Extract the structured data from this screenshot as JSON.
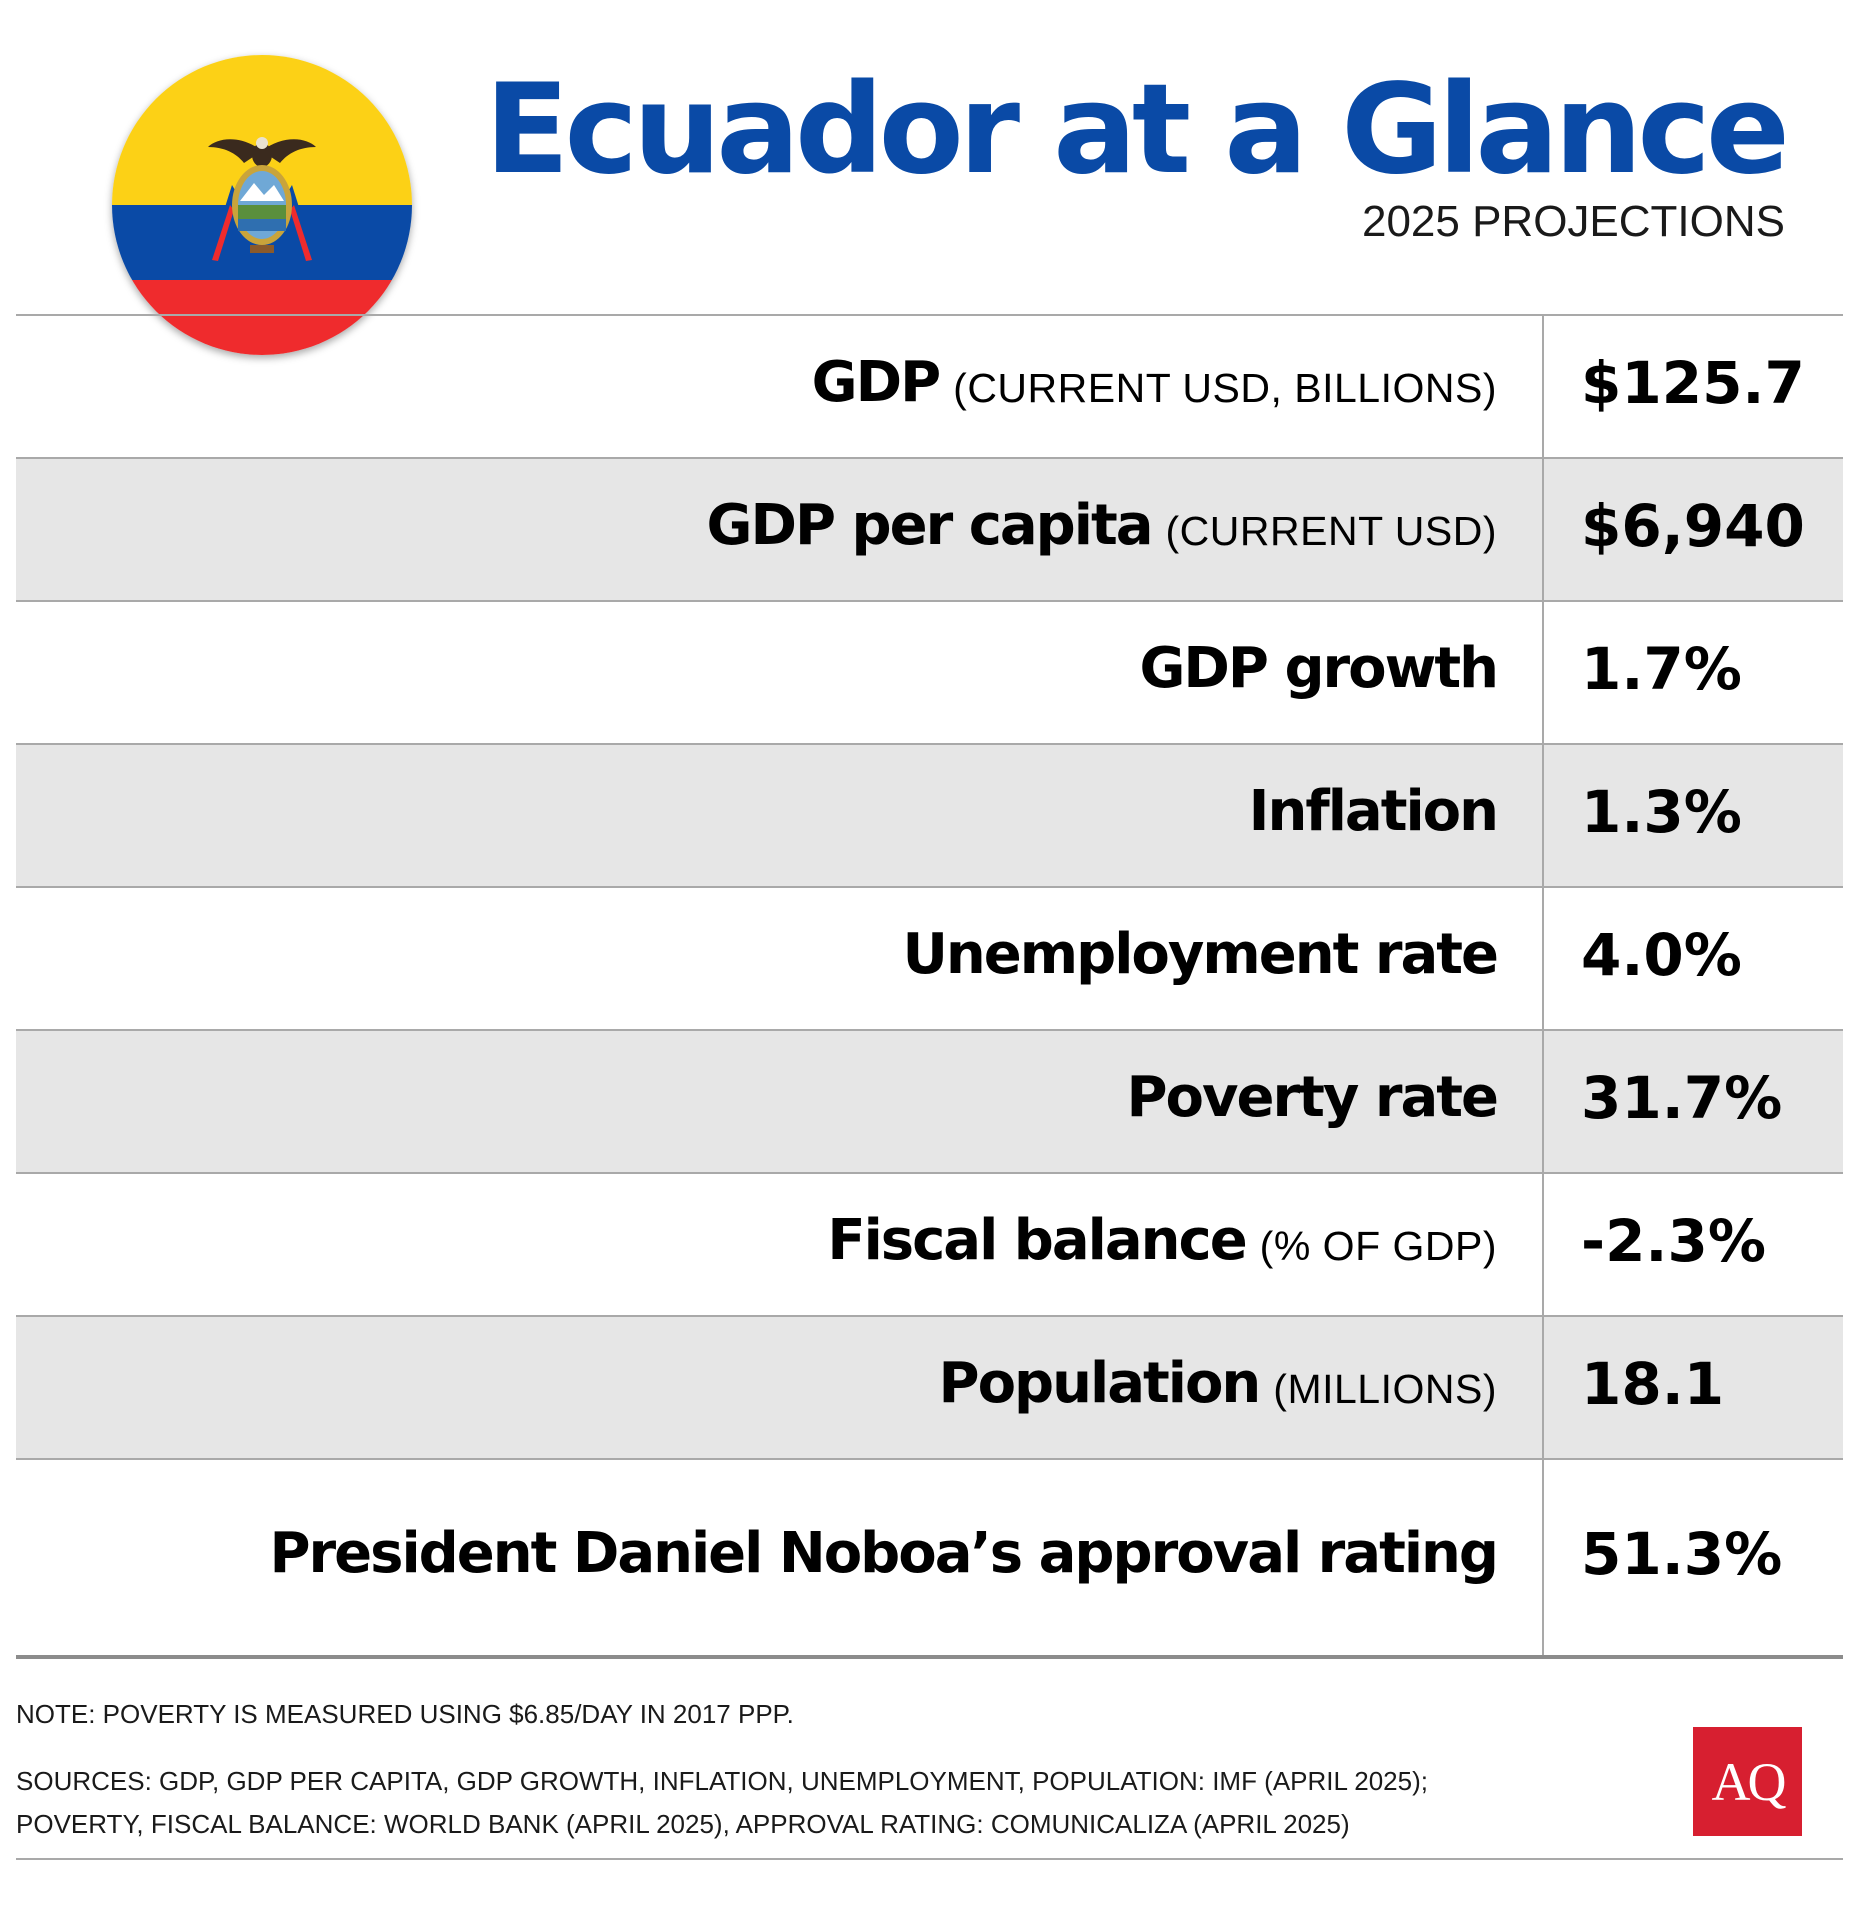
{
  "header": {
    "title": "Ecuador at a Glance",
    "subtitle": "2025 PROJECTIONS"
  },
  "flag": {
    "icon": "ecuador-flag-icon",
    "colors": {
      "yellow": "#fcd116",
      "blue": "#0a4aa6",
      "red": "#ef2b2d"
    }
  },
  "rows": [
    {
      "label": "GDP",
      "unit": "(CURRENT USD, BILLIONS)",
      "value": "$125.7"
    },
    {
      "label": "GDP per capita",
      "unit": "(CURRENT USD)",
      "value": "$6,940"
    },
    {
      "label": "GDP growth",
      "unit": "",
      "value": "1.7%"
    },
    {
      "label": "Inflation",
      "unit": "",
      "value": "1.3%"
    },
    {
      "label": "Unemployment rate",
      "unit": "",
      "value": "4.0%"
    },
    {
      "label": "Poverty rate",
      "unit": "",
      "value": "31.7%"
    },
    {
      "label": "Fiscal balance",
      "unit": "(% OF GDP)",
      "value": "-2.3%"
    },
    {
      "label": "Population",
      "unit": "(MILLIONS)",
      "value": "18.1"
    },
    {
      "label": "President Daniel Noboa’s approval rating",
      "unit": "",
      "value": "51.3%"
    }
  ],
  "footer": {
    "note": "NOTE: POVERTY IS MEASURED USING $6.85/DAY IN 2017 PPP.",
    "sources_line1": "SOURCES: GDP, GDP PER CAPITA, GDP GROWTH, INFLATION, UNEMPLOYMENT, POPULATION: IMF (APRIL 2025);",
    "sources_line2": "POVERTY, FISCAL BALANCE: WORLD BANK (APRIL 2025), APPROVAL RATING: COMUNICALIZA (APRIL 2025)",
    "logo_text": "AQ",
    "logo_color": "#d71f30"
  }
}
